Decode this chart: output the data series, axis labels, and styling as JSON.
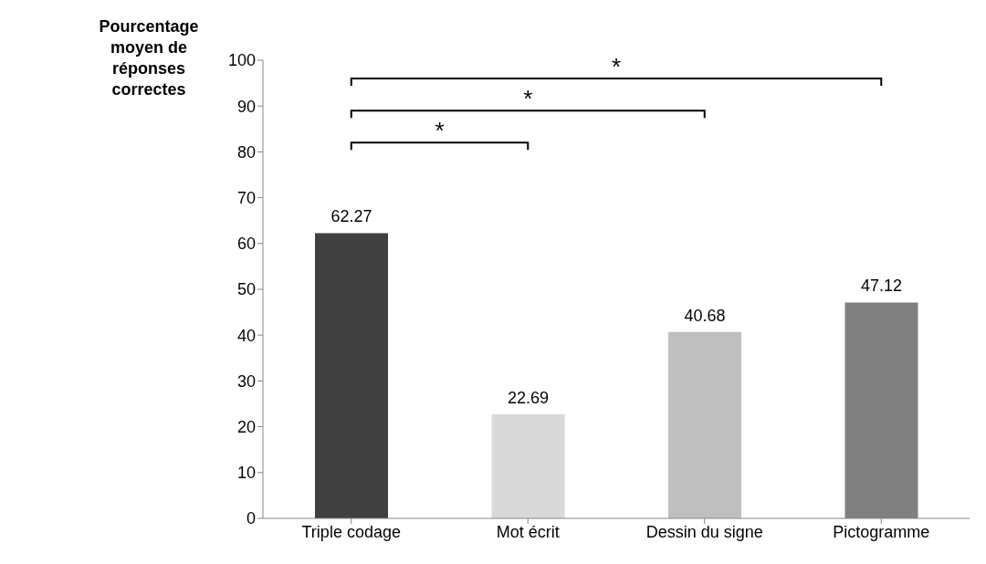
{
  "chart_data": {
    "type": "bar",
    "ylabel": "Pourcentage moyen de réponses correctes",
    "categories": [
      "Triple codage",
      "Mot écrit",
      "Dessin du signe",
      "Pictogramme"
    ],
    "values": [
      62.27,
      22.69,
      40.68,
      47.12
    ],
    "colors": [
      "#404040",
      "#d9d9d9",
      "#bfbfbf",
      "#808080"
    ],
    "ylim": [
      0,
      100
    ],
    "yticks": [
      0,
      10,
      20,
      30,
      40,
      50,
      60,
      70,
      80,
      90,
      100
    ],
    "data_labels": true,
    "grid": false,
    "legend": false,
    "annotations": [
      "*",
      "*",
      "*"
    ]
  }
}
